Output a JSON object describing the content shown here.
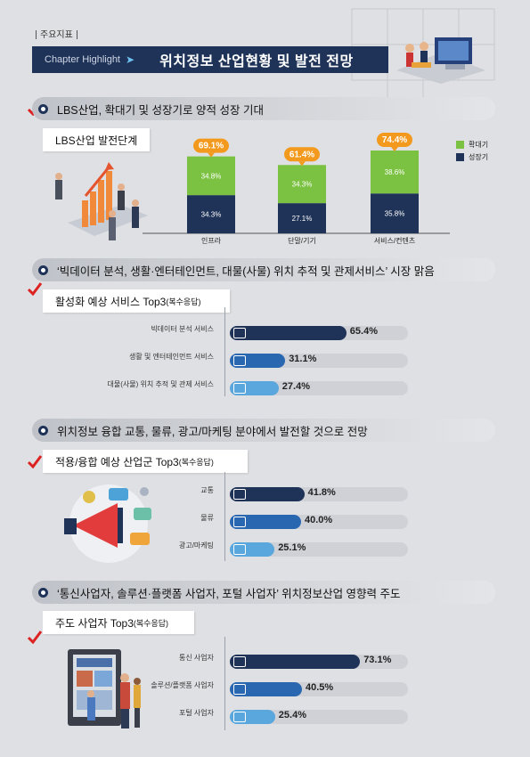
{
  "header": {
    "tag": "주요지표",
    "chapter": "Chapter Highlight",
    "title": "위치정보 산업현황 및 발전 전망"
  },
  "sections": [
    {
      "text": "LBS산업, 확대기 및 성장기로 양적 성장 기대"
    },
    {
      "text": "‘빅데이터 분석, 생활·엔터테인먼트, 대물(사물) 위치 추적 및 관제서비스’ 시장 맑음"
    },
    {
      "text": "위치정보 융합 교통, 물류, 광고/마케팅 분야에서 발전할 것으로 전망"
    },
    {
      "text": "‘통신사업자, 솔루션·플랫폼 사업자, 포털 사업자’ 위치정보산업 영향력 주도"
    }
  ],
  "panels": {
    "lbs": "LBS산업 발전단계",
    "service": "활성화 예상 서비스 Top3",
    "service_note": "(복수응답)",
    "industry": "적용/융합 예상 산업군 Top3",
    "industry_note": "(복수응답)",
    "leader": "주도 사업자 Top3",
    "leader_note": "(복수응답)"
  },
  "colors": {
    "navy": "#1f3358",
    "green": "#7cc242",
    "orange": "#f39a1e",
    "blue": "#2a67b1",
    "lightblue": "#5aa7dd"
  },
  "chart_data": [
    {
      "type": "bar",
      "title": "LBS산업 발전단계",
      "categories": [
        "인프라",
        "단말/기기",
        "서비스/컨텐츠"
      ],
      "series": [
        {
          "name": "성장기",
          "values": [
            34.3,
            27.1,
            35.8
          ],
          "labels": [
            "34.3%",
            "27.1%",
            "35.8%"
          ]
        },
        {
          "name": "확대기",
          "values": [
            34.8,
            34.3,
            38.6
          ],
          "labels": [
            "34.8%",
            "34.3%",
            "38.6%"
          ]
        }
      ],
      "totals": [
        "69.1%",
        "61.4%",
        "74.4%"
      ],
      "total_values": [
        69.1,
        61.4,
        74.4
      ],
      "legend": "top-right"
    },
    {
      "type": "bar",
      "title": "활성화 예상 서비스 Top3",
      "categories": [
        "빅데이터 분석 서비스",
        "생활 및 엔터테인먼트 서비스",
        "대물(사물) 위치 추적 및 관제 서비스"
      ],
      "values": [
        65.4,
        31.1,
        27.4
      ],
      "labels": [
        "65.4%",
        "31.1%",
        "27.4%"
      ]
    },
    {
      "type": "bar",
      "title": "적용/융합 예상 산업군 Top3",
      "categories": [
        "교통",
        "물류",
        "광고/마케팅"
      ],
      "values": [
        41.8,
        40.0,
        25.1
      ],
      "labels": [
        "41.8%",
        "40.0%",
        "25.1%"
      ]
    },
    {
      "type": "bar",
      "title": "주도 사업자 Top3",
      "categories": [
        "통신 사업자",
        "솔루션/플랫폼 사업자",
        "포털 사업자"
      ],
      "values": [
        73.1,
        40.5,
        25.4
      ],
      "labels": [
        "73.1%",
        "40.5%",
        "25.4%"
      ]
    }
  ]
}
